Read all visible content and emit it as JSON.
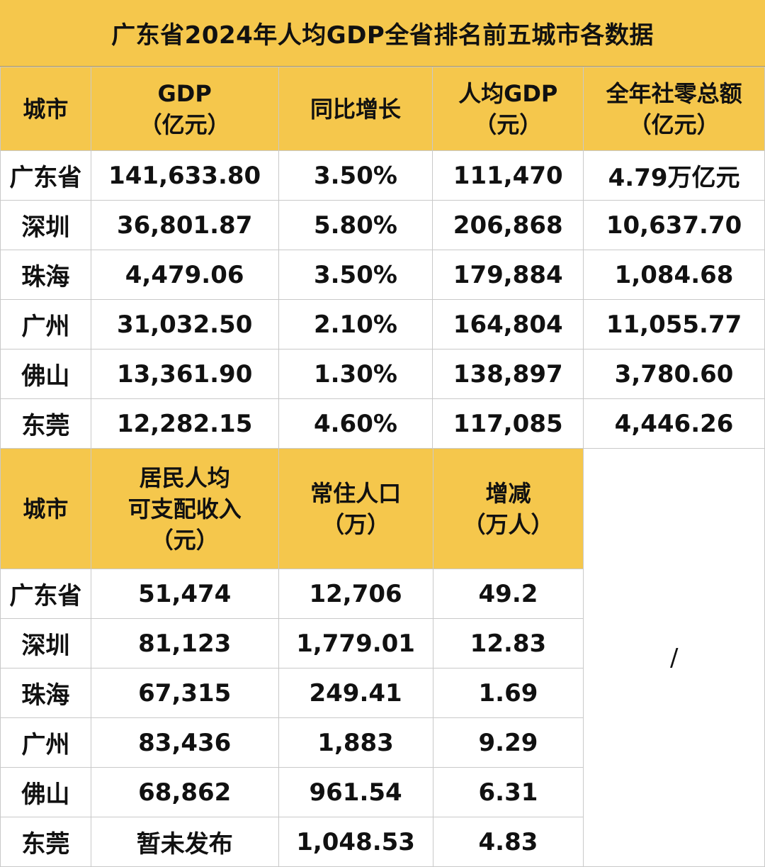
{
  "title": "广东省2024年人均GDP全省排名前五城市各数据",
  "table1": {
    "headers": [
      [
        "城市"
      ],
      [
        "GDP",
        "（亿元）"
      ],
      [
        "同比增长"
      ],
      [
        "人均GDP",
        "（元）"
      ],
      [
        "全年社零总额",
        "（亿元）"
      ]
    ],
    "rows": [
      [
        "广东省",
        "141,633.80",
        "3.50%",
        "111,470",
        "4.79万亿元"
      ],
      [
        "深圳",
        "36,801.87",
        "5.80%",
        "206,868",
        "10,637.70"
      ],
      [
        "珠海",
        "4,479.06",
        "3.50%",
        "179,884",
        "1,084.68"
      ],
      [
        "广州",
        "31,032.50",
        "2.10%",
        "164,804",
        "11,055.77"
      ],
      [
        "佛山",
        "13,361.90",
        "1.30%",
        "138,897",
        "3,780.60"
      ],
      [
        "东莞",
        "12,282.15",
        "4.60%",
        "117,085",
        "4,446.26"
      ]
    ]
  },
  "table2": {
    "headers": [
      [
        "城市"
      ],
      [
        "居民人均",
        "可支配收入",
        "（元）"
      ],
      [
        "常住人口",
        "（万）"
      ],
      [
        "增减",
        "（万人）"
      ]
    ],
    "rows": [
      [
        "广东省",
        "51,474",
        "12,706",
        "49.2"
      ],
      [
        "深圳",
        "81,123",
        "1,779.01",
        "12.83"
      ],
      [
        "珠海",
        "67,315",
        "249.41",
        "1.69"
      ],
      [
        "广州",
        "83,436",
        "1,883",
        "9.29"
      ],
      [
        "佛山",
        "68,862",
        "961.54",
        "6.31"
      ],
      [
        "东莞",
        "暂未发布",
        "1,048.53",
        "4.83"
      ]
    ],
    "blank_cell": "/"
  }
}
